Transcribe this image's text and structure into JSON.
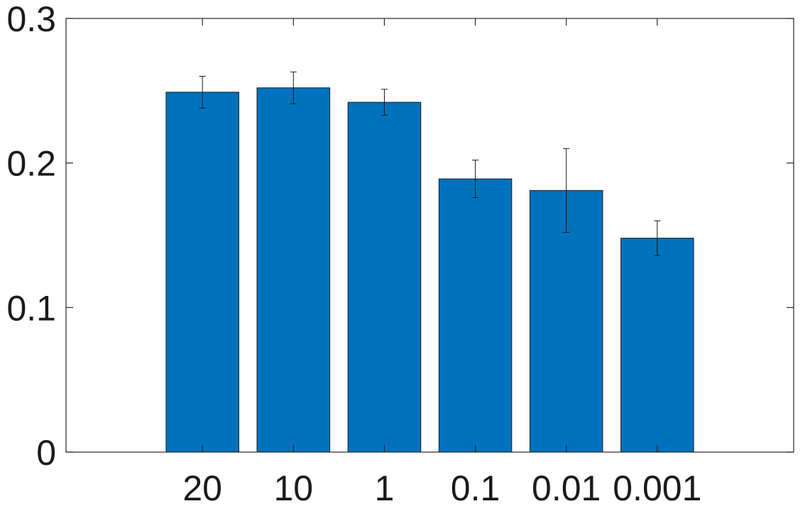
{
  "chart_data": {
    "type": "bar",
    "title": "",
    "xlabel": "",
    "ylabel": "",
    "categories": [
      "20",
      "10",
      "1",
      "0.1",
      "0.01",
      "0.001"
    ],
    "values": [
      0.249,
      0.252,
      0.242,
      0.189,
      0.181,
      0.148
    ],
    "errors": [
      0.011,
      0.011,
      0.009,
      0.013,
      0.029,
      0.012
    ],
    "ylim": [
      0,
      0.3
    ],
    "yticks": [
      0,
      0.1,
      0.2,
      0.3
    ],
    "ytick_labels": [
      "0",
      "0.1",
      "0.2",
      "0.3"
    ],
    "xlim": [
      -0.5,
      7.5
    ],
    "grid": false,
    "legend": "none",
    "bar_color": "#0072BD"
  }
}
